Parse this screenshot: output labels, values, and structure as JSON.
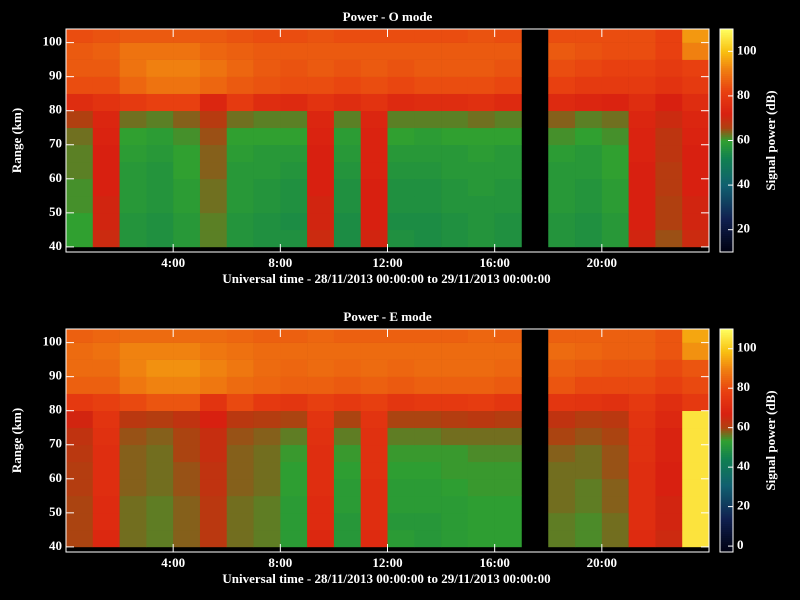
{
  "chart_data": [
    {
      "type": "heatmap",
      "title": "Power - O mode",
      "xlabel": "Universal time - 28/11/2013 00:00:00 to 29/11/2013 00:00:00",
      "ylabel": "Range (km)",
      "zlabel": "Signal power (dB)",
      "xlim": [
        0,
        24
      ],
      "ylim": [
        38.5,
        104
      ],
      "xticks": [
        {
          "value": 4,
          "label": "4:00"
        },
        {
          "value": 8,
          "label": "8:00"
        },
        {
          "value": 12,
          "label": "12:00"
        },
        {
          "value": 16,
          "label": "16:00"
        },
        {
          "value": 20,
          "label": "20:00"
        }
      ],
      "yticks": [
        40,
        50,
        60,
        70,
        80,
        90,
        100
      ],
      "zlim": [
        10,
        110
      ],
      "zticks": [
        20,
        40,
        60,
        80,
        100
      ],
      "x": [
        0.5,
        1.5,
        2.5,
        3.5,
        4.5,
        5.5,
        6.5,
        7.5,
        8.5,
        9.5,
        10.5,
        11.5,
        12.5,
        13.5,
        14.5,
        15.5,
        16.5,
        17.5,
        18.5,
        19.5,
        20.5,
        21.5,
        22.5,
        23.5
      ],
      "y": [
        42.5,
        47.5,
        52.5,
        57.5,
        62.5,
        67.5,
        72.5,
        77.5,
        82.5,
        87.5,
        92.5,
        97.5,
        102.5
      ],
      "values": [
        [
          60,
          70,
          57,
          56,
          58,
          62,
          57,
          56,
          56,
          70,
          55,
          71,
          56,
          55,
          56,
          57,
          56,
          null,
          57,
          56,
          58,
          71,
          65,
          70
        ],
        [
          60,
          71,
          57,
          56,
          58,
          62,
          57,
          56,
          55,
          71,
          55,
          72,
          55,
          55,
          56,
          57,
          56,
          null,
          57,
          56,
          58,
          72,
          66,
          71
        ],
        [
          61,
          71,
          58,
          57,
          59,
          63,
          58,
          57,
          56,
          71,
          56,
          72,
          56,
          56,
          57,
          57,
          57,
          null,
          58,
          57,
          59,
          72,
          66,
          71
        ],
        [
          61,
          72,
          58,
          57,
          59,
          63,
          58,
          57,
          56,
          72,
          56,
          72,
          56,
          56,
          57,
          58,
          57,
          null,
          58,
          57,
          59,
          72,
          67,
          72
        ],
        [
          62,
          72,
          58,
          57,
          60,
          64,
          58,
          58,
          57,
          72,
          57,
          73,
          57,
          57,
          58,
          58,
          58,
          null,
          58,
          58,
          60,
          72,
          67,
          72
        ],
        [
          62,
          72,
          59,
          58,
          60,
          64,
          59,
          58,
          58,
          72,
          58,
          73,
          58,
          58,
          58,
          59,
          58,
          null,
          59,
          58,
          60,
          73,
          68,
          72
        ],
        [
          63,
          73,
          60,
          59,
          61,
          65,
          60,
          60,
          60,
          73,
          59,
          73,
          60,
          59,
          60,
          60,
          60,
          null,
          61,
          60,
          61,
          73,
          68,
          73
        ],
        [
          66,
          74,
          63,
          62,
          64,
          67,
          63,
          62,
          62,
          74,
          62,
          74,
          62,
          62,
          62,
          63,
          62,
          null,
          64,
          62,
          63,
          74,
          70,
          74
        ],
        [
          76,
          78,
          80,
          82,
          82,
          74,
          80,
          76,
          75,
          78,
          76,
          78,
          75,
          76,
          76,
          77,
          75,
          null,
          75,
          74,
          73,
          76,
          72,
          76
        ],
        [
          84,
          84,
          88,
          90,
          90,
          88,
          86,
          85,
          84,
          84,
          83,
          84,
          83,
          84,
          84,
          84,
          83,
          null,
          82,
          80,
          80,
          80,
          78,
          80
        ],
        [
          86,
          86,
          90,
          92,
          92,
          90,
          88,
          86,
          85,
          86,
          85,
          86,
          85,
          86,
          86,
          86,
          85,
          null,
          84,
          83,
          82,
          82,
          80,
          82
        ],
        [
          86,
          87,
          90,
          90,
          90,
          88,
          87,
          86,
          86,
          86,
          86,
          86,
          86,
          86,
          86,
          86,
          86,
          null,
          86,
          85,
          84,
          84,
          82,
          92
        ],
        [
          84,
          85,
          86,
          86,
          86,
          86,
          85,
          84,
          84,
          85,
          84,
          84,
          84,
          84,
          84,
          85,
          84,
          null,
          84,
          84,
          84,
          84,
          82,
          95
        ]
      ]
    },
    {
      "type": "heatmap",
      "title": "Power - E mode",
      "xlabel": "Universal time - 28/11/2013 00:00:00 to 29/11/2013 00:00:00",
      "ylabel": "Range (km)",
      "zlabel": "Signal power (dB)",
      "xlim": [
        0,
        24
      ],
      "ylim": [
        38.5,
        104
      ],
      "xticks": [
        {
          "value": 4,
          "label": "4:00"
        },
        {
          "value": 8,
          "label": "8:00"
        },
        {
          "value": 12,
          "label": "12:00"
        },
        {
          "value": 16,
          "label": "16:00"
        },
        {
          "value": 20,
          "label": "20:00"
        }
      ],
      "yticks": [
        40,
        50,
        60,
        70,
        80,
        90,
        100
      ],
      "zlim": [
        -3,
        110
      ],
      "zticks": [
        0,
        20,
        40,
        60,
        80,
        100
      ],
      "x": [
        0.5,
        1.5,
        2.5,
        3.5,
        4.5,
        5.5,
        6.5,
        7.5,
        8.5,
        9.5,
        10.5,
        11.5,
        12.5,
        13.5,
        14.5,
        15.5,
        16.5,
        17.5,
        18.5,
        19.5,
        20.5,
        21.5,
        22.5,
        23.5
      ],
      "y": [
        42.5,
        47.5,
        52.5,
        57.5,
        62.5,
        67.5,
        72.5,
        77.5,
        82.5,
        87.5,
        92.5,
        97.5,
        102.5
      ],
      "values": [
        [
          60,
          70,
          57,
          56,
          58,
          62,
          57,
          56,
          52,
          70,
          51,
          71,
          52,
          51,
          52,
          53,
          53,
          null,
          56,
          55,
          57,
          71,
          65,
          105
        ],
        [
          60,
          71,
          57,
          56,
          58,
          62,
          57,
          56,
          52,
          71,
          51,
          72,
          51,
          51,
          52,
          53,
          53,
          null,
          56,
          55,
          57,
          72,
          66,
          105
        ],
        [
          60,
          71,
          57,
          56,
          58,
          62,
          57,
          56,
          52,
          71,
          52,
          72,
          52,
          52,
          52,
          53,
          53,
          null,
          57,
          56,
          58,
          72,
          66,
          105
        ],
        [
          61,
          72,
          58,
          57,
          59,
          63,
          58,
          57,
          53,
          72,
          52,
          72,
          52,
          52,
          53,
          54,
          54,
          null,
          57,
          56,
          58,
          72,
          67,
          105
        ],
        [
          61,
          72,
          58,
          57,
          59,
          63,
          58,
          57,
          53,
          72,
          53,
          73,
          53,
          53,
          54,
          54,
          54,
          null,
          57,
          57,
          59,
          72,
          67,
          105
        ],
        [
          62,
          72,
          58,
          57,
          60,
          64,
          58,
          57,
          54,
          72,
          54,
          73,
          54,
          54,
          54,
          55,
          55,
          null,
          58,
          57,
          59,
          73,
          68,
          105
        ],
        [
          63,
          73,
          59,
          58,
          60,
          64,
          59,
          58,
          56,
          73,
          56,
          73,
          56,
          56,
          57,
          57,
          57,
          null,
          60,
          59,
          60,
          73,
          68,
          105
        ],
        [
          66,
          74,
          62,
          61,
          63,
          67,
          62,
          61,
          60,
          74,
          60,
          74,
          60,
          60,
          61,
          62,
          61,
          null,
          63,
          61,
          62,
          74,
          70,
          105
        ],
        [
          76,
          78,
          80,
          82,
          82,
          74,
          80,
          76,
          75,
          78,
          76,
          78,
          75,
          76,
          76,
          77,
          75,
          null,
          75,
          74,
          73,
          76,
          72,
          76
        ],
        [
          84,
          84,
          88,
          90,
          90,
          88,
          86,
          85,
          84,
          84,
          83,
          84,
          83,
          84,
          84,
          84,
          83,
          null,
          82,
          80,
          80,
          80,
          78,
          80
        ],
        [
          86,
          86,
          90,
          92,
          92,
          90,
          88,
          86,
          85,
          86,
          85,
          86,
          85,
          86,
          86,
          86,
          85,
          null,
          84,
          83,
          82,
          82,
          80,
          82
        ],
        [
          86,
          87,
          90,
          90,
          90,
          88,
          87,
          86,
          86,
          86,
          86,
          86,
          86,
          86,
          86,
          86,
          86,
          null,
          86,
          85,
          84,
          84,
          82,
          92
        ],
        [
          84,
          85,
          86,
          86,
          86,
          86,
          85,
          84,
          84,
          85,
          84,
          84,
          84,
          84,
          84,
          85,
          84,
          null,
          84,
          84,
          84,
          84,
          82,
          95
        ]
      ]
    }
  ]
}
